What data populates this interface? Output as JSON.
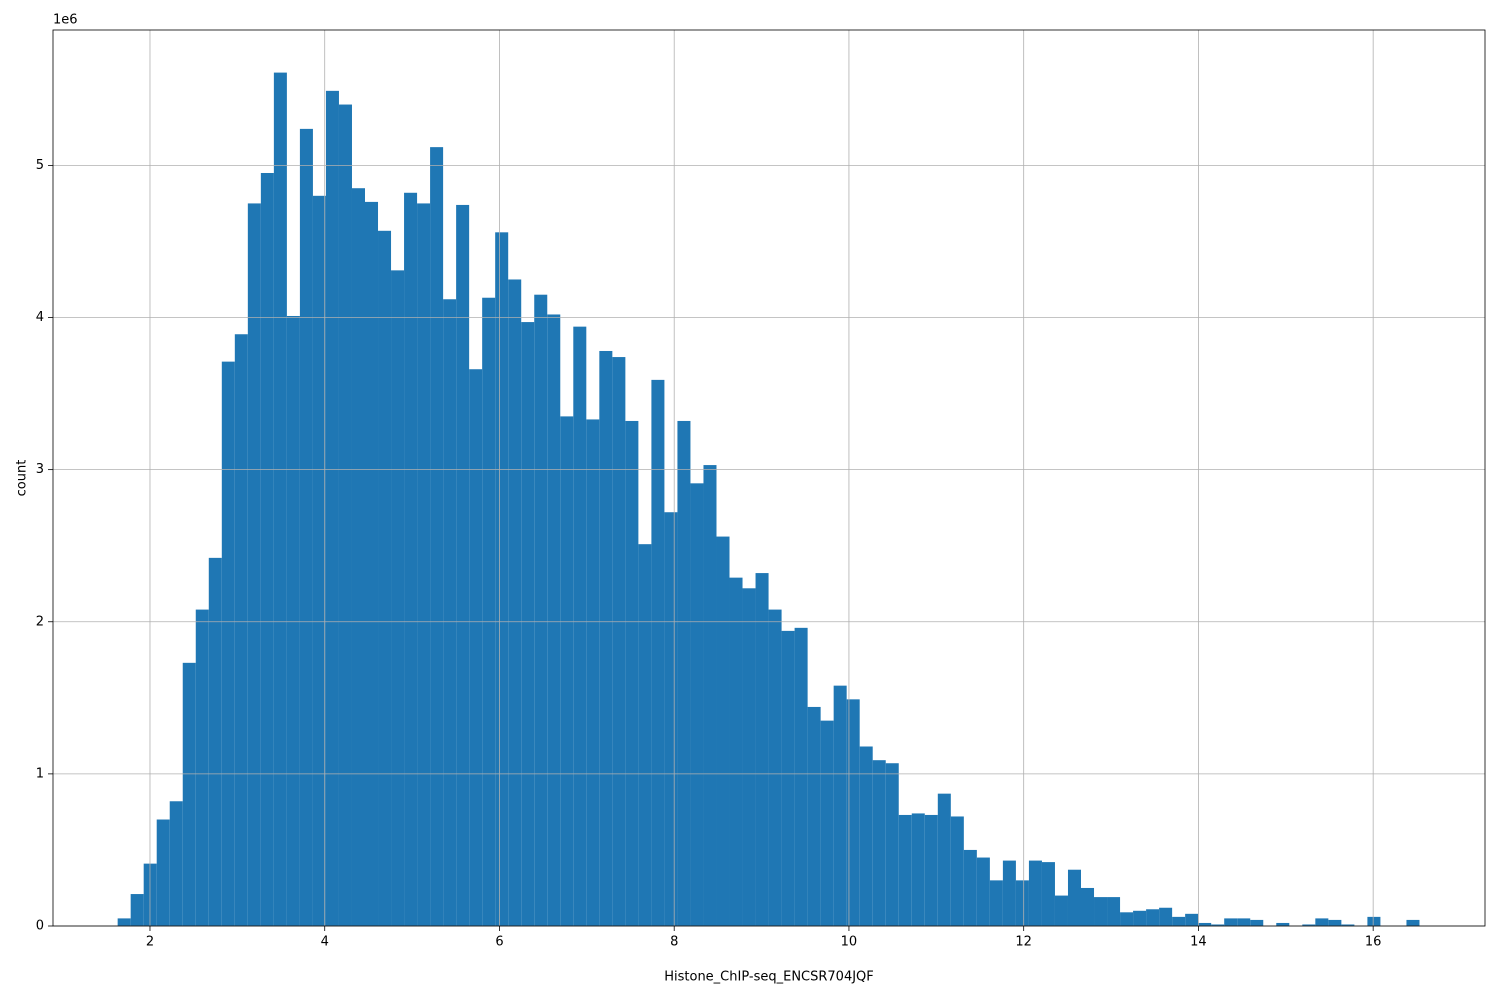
{
  "chart_data": {
    "type": "histogram",
    "xlabel": "Histone_ChIP-seq_ENCSR704JQF",
    "ylabel": "count",
    "y_offset_label": "1e6",
    "color": "#1f77b4",
    "grid": true,
    "bins": [
      1.63,
      1.779,
      1.928,
      2.077,
      2.226,
      2.375,
      2.524,
      2.673,
      2.822,
      2.971,
      3.12,
      3.269,
      3.418,
      3.567,
      3.716,
      3.865,
      4.014,
      4.163,
      4.312,
      4.461,
      4.61,
      4.759,
      4.908,
      5.057,
      5.206,
      5.355,
      5.504,
      5.653,
      5.802,
      5.951,
      6.1,
      6.249,
      6.398,
      6.547,
      6.696,
      6.845,
      6.994,
      7.143,
      7.292,
      7.441,
      7.59,
      7.739,
      7.888,
      8.037,
      8.186,
      8.335,
      8.484,
      8.633,
      8.782,
      8.931,
      9.08,
      9.229,
      9.378,
      9.527,
      9.676,
      9.825,
      9.974,
      10.123,
      10.272,
      10.421,
      10.57,
      10.719,
      10.868,
      11.017,
      11.166,
      11.315,
      11.464,
      11.613,
      11.762,
      11.911,
      12.06,
      12.209,
      12.358,
      12.507,
      12.656,
      12.805,
      12.954,
      13.103,
      13.252,
      13.401,
      13.55,
      13.699,
      13.848,
      13.997,
      14.146,
      14.295,
      14.444,
      14.593,
      14.742,
      14.891,
      15.04,
      15.189,
      15.338,
      15.487,
      15.636,
      15.785,
      15.934,
      16.083,
      16.232,
      16.381,
      16.53
    ],
    "counts": [
      50000,
      210000,
      410000,
      700000,
      820000,
      1730000,
      2080000,
      2420000,
      3710000,
      3890000,
      4750000,
      4950000,
      5610000,
      4010000,
      5240000,
      4800000,
      5490000,
      5400000,
      4850000,
      4760000,
      4570000,
      4310000,
      4820000,
      4750000,
      5120000,
      4120000,
      4740000,
      3660000,
      4130000,
      4560000,
      4250000,
      3970000,
      4150000,
      4020000,
      3350000,
      3940000,
      3330000,
      3780000,
      3740000,
      3320000,
      2510000,
      3590000,
      2720000,
      3320000,
      2910000,
      3030000,
      2560000,
      2290000,
      2220000,
      2320000,
      2080000,
      1940000,
      1960000,
      1440000,
      1350000,
      1580000,
      1490000,
      1180000,
      1090000,
      1070000,
      730000,
      740000,
      730000,
      870000,
      720000,
      500000,
      450000,
      300000,
      430000,
      300000,
      430000,
      420000,
      200000,
      370000,
      250000,
      190000,
      190000,
      90000,
      100000,
      110000,
      120000,
      60000,
      80000,
      20000,
      10000,
      50000,
      50000,
      40000,
      0,
      20000,
      0,
      10000,
      50000,
      40000,
      10000,
      0,
      60000,
      0,
      0,
      40000
    ],
    "xlim": [
      0.89,
      17.28
    ],
    "xticks": [
      2,
      4,
      6,
      8,
      10,
      12,
      14,
      16
    ],
    "ylim": [
      0,
      5890000
    ],
    "yticks": [
      {
        "value": 0,
        "label": "0"
      },
      {
        "value": 1000000,
        "label": "1"
      },
      {
        "value": 2000000,
        "label": "2"
      },
      {
        "value": 3000000,
        "label": "3"
      },
      {
        "value": 4000000,
        "label": "4"
      },
      {
        "value": 5000000,
        "label": "5"
      }
    ]
  }
}
